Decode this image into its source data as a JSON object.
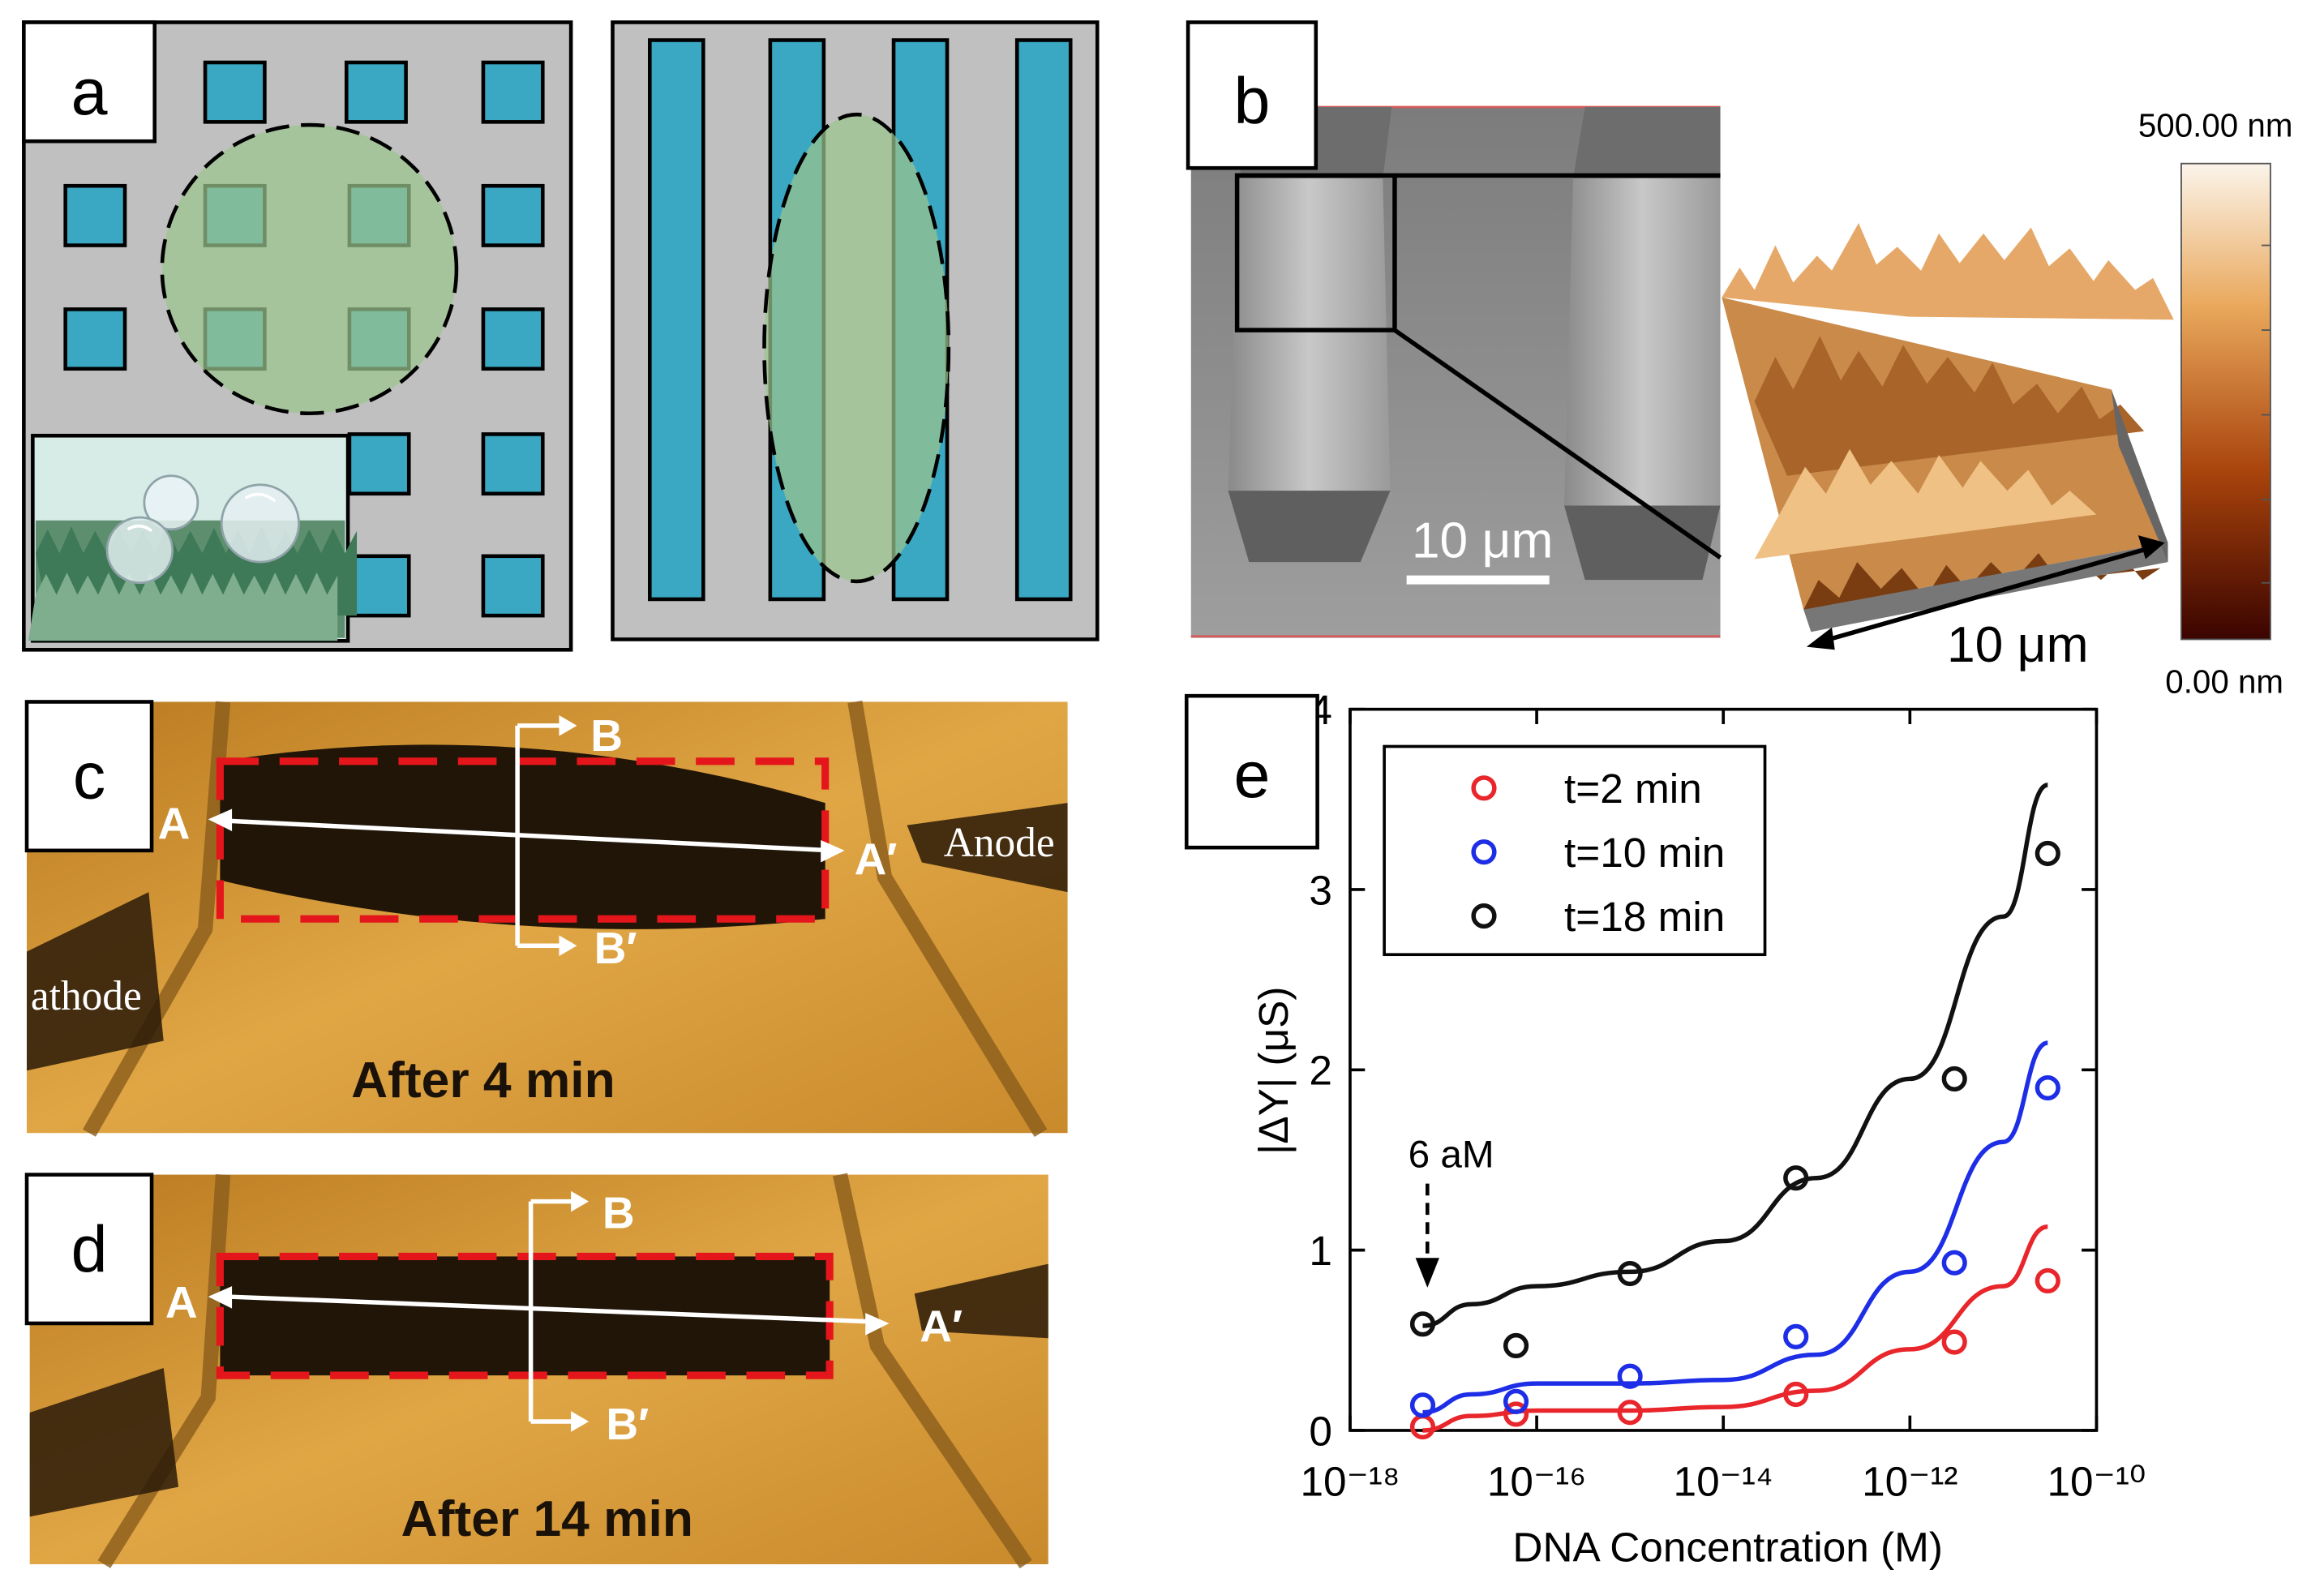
{
  "panels": {
    "a": {
      "label": "a"
    },
    "b": {
      "label": "b",
      "scale_bar": "10 μm",
      "afm_axis": "10 μm",
      "colorbar_max": "500.00 nm",
      "colorbar_min": "0.00 nm"
    },
    "c": {
      "label": "c",
      "point_a": "A",
      "point_a_prime": "A′",
      "point_b": "B",
      "point_b_prime": "B′",
      "anode": "Anode",
      "cathode": "athode",
      "caption": "After 4 min"
    },
    "d": {
      "label": "d",
      "point_a": "A",
      "point_a_prime": "A′",
      "point_b": "B",
      "point_b_prime": "B′",
      "caption": "After 14 min"
    },
    "e": {
      "label": "e",
      "annotation": "6 aM"
    }
  },
  "colors": {
    "electrode": "#3aa7c3",
    "substrate": "#c0c0c0",
    "droplet": "#9bc58e",
    "gold": "#dca23a",
    "red_series": "#e8262b",
    "blue_series": "#1d2ee6",
    "black_series": "#111111"
  },
  "chart_data": {
    "type": "scatter",
    "title": "",
    "xlabel": "DNA Concentration (M)",
    "ylabel": "|ΔY| (μS)",
    "xscale": "log",
    "xlim": [
      1e-18,
      1e-10
    ],
    "ylim": [
      0,
      4
    ],
    "x_tick_labels": [
      "10⁻¹⁸",
      "10⁻¹⁶",
      "10⁻¹⁴",
      "10⁻¹²",
      "10⁻¹⁰"
    ],
    "y_tick_labels": [
      "0",
      "1",
      "2",
      "3",
      "4"
    ],
    "legend_position": "top-left",
    "series": [
      {
        "name": "t=2 min",
        "color": "#e8262b",
        "x": [
          6e-18,
          6e-17,
          1e-15,
          6e-14,
          3e-12,
          3e-11
        ],
        "y": [
          0.02,
          0.09,
          0.1,
          0.2,
          0.49,
          0.83
        ],
        "fit": [
          [
            6e-18,
            0.0
          ],
          [
            2e-17,
            0.08
          ],
          [
            1e-16,
            0.11
          ],
          [
            1e-15,
            0.11
          ],
          [
            1e-14,
            0.13
          ],
          [
            1e-13,
            0.22
          ],
          [
            1e-12,
            0.45
          ],
          [
            1e-11,
            0.8
          ],
          [
            3e-11,
            1.13
          ]
        ]
      },
      {
        "name": "t=10 min",
        "color": "#1d2ee6",
        "x": [
          6e-18,
          6e-17,
          1e-15,
          6e-14,
          3e-12,
          3e-11
        ],
        "y": [
          0.14,
          0.16,
          0.3,
          0.52,
          0.93,
          1.9
        ],
        "fit": [
          [
            6e-18,
            0.1
          ],
          [
            2e-17,
            0.2
          ],
          [
            1e-16,
            0.26
          ],
          [
            1e-15,
            0.26
          ],
          [
            1e-14,
            0.28
          ],
          [
            1e-13,
            0.42
          ],
          [
            1e-12,
            0.88
          ],
          [
            1e-11,
            1.6
          ],
          [
            3e-11,
            2.15
          ]
        ]
      },
      {
        "name": "t=18 min",
        "color": "#111111",
        "x": [
          6e-18,
          6e-17,
          1e-15,
          6e-14,
          3e-12,
          3e-11
        ],
        "y": [
          0.59,
          0.47,
          0.87,
          1.4,
          1.95,
          3.2
        ],
        "fit": [
          [
            6e-18,
            0.58
          ],
          [
            2e-17,
            0.7
          ],
          [
            1e-16,
            0.8
          ],
          [
            1e-15,
            0.88
          ],
          [
            1e-14,
            1.05
          ],
          [
            1e-13,
            1.4
          ],
          [
            1e-12,
            1.95
          ],
          [
            1e-11,
            2.85
          ],
          [
            3e-11,
            3.58
          ]
        ]
      }
    ]
  }
}
